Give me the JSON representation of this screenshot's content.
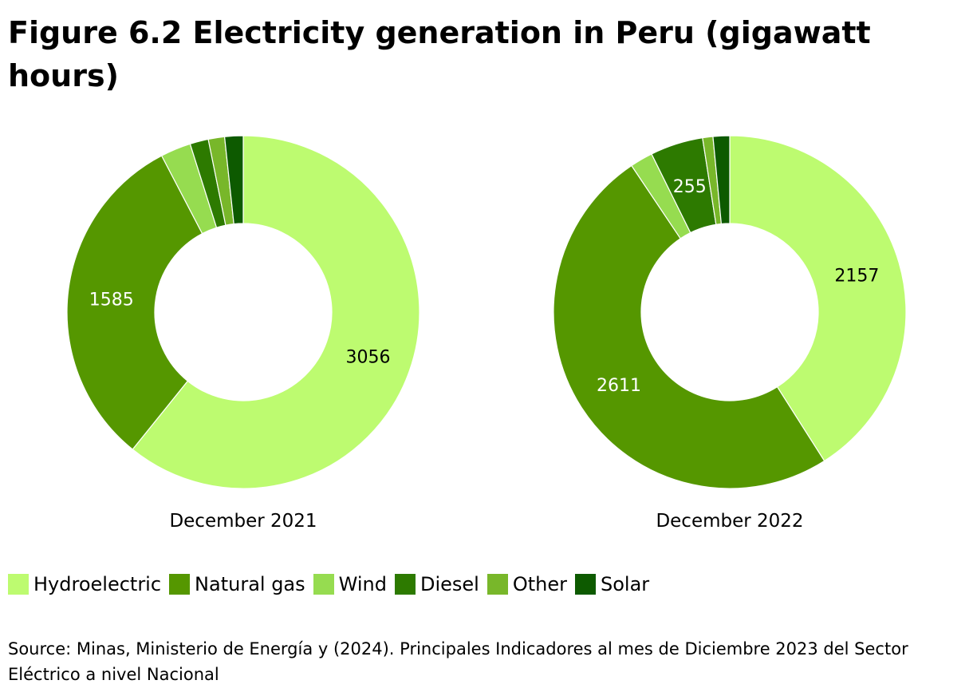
{
  "title": "Figure 6.2 Electricity generation in Peru (gigawatt hours)",
  "source": "Source: Minas, Ministerio de Energía y (2024). Principales Indicadores al mes de Diciembre 2023 del Sector Eléctrico a nivel Nacional",
  "legend": [
    {
      "label": "Hydroelectric",
      "color": "#bdfb70"
    },
    {
      "label": "Natural gas",
      "color": "#559700"
    },
    {
      "label": "Wind",
      "color": "#96dc50"
    },
    {
      "label": "Diesel",
      "color": "#2d7a00"
    },
    {
      "label": "Other",
      "color": "#78b72a"
    },
    {
      "label": "Solar",
      "color": "#0d5a00"
    }
  ],
  "chart_data": [
    {
      "type": "pie",
      "title": "December 2021",
      "categories": [
        "Hydroelectric",
        "Natural gas",
        "Wind",
        "Diesel",
        "Other",
        "Solar"
      ],
      "values": [
        3056,
        1585,
        140,
        85,
        75,
        85
      ],
      "data_labels": [
        "3056",
        "1585",
        "",
        "",
        "",
        ""
      ]
    },
    {
      "type": "pie",
      "title": "December 2022",
      "categories": [
        "Hydroelectric",
        "Natural gas",
        "Wind",
        "Diesel",
        "Other",
        "Solar"
      ],
      "values": [
        2157,
        2611,
        110,
        255,
        50,
        80
      ],
      "data_labels": [
        "2157",
        "2611",
        "",
        "255",
        "",
        ""
      ]
    }
  ]
}
